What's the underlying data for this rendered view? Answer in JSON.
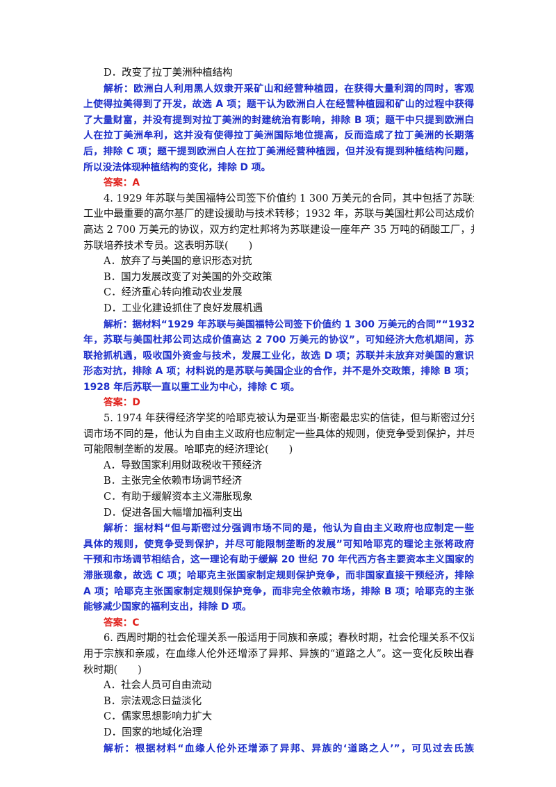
{
  "q3": {
    "option_d": "D．改变了拉丁美洲种植结构",
    "explanation": [
      "解析：欧洲白人利用黑人奴隶开采矿山和经营种植园，在获得大量利润的同时，客观",
      "上使得拉美得到了开发，故选 A 项；题干认为欧洲白人在经营种植园和矿山的过程中获得",
      "了大量财富，并没有提到对拉丁美洲的封建统治有影响，排除 B 项；题干中只提到欧洲白",
      "人在拉丁美洲牟利，这并没有使得拉丁美洲国际地位提高，反而造成了拉丁美洲的长期落",
      "后，排除 C 项；题干提到欧洲白人在拉丁美洲经营种植园，但并没有提到种植结构问题，",
      "所以没法体现种植结构的变化，排除 D 项。"
    ],
    "answer": "答案：A"
  },
  "q4": {
    "stem": [
      "4. 1929 年苏联与美国福特公司签下价值约 1 300 万美元的合同，其中包括了苏联汽车",
      "工业中最重要的高尔基厂的建设援助与技术转移；1932 年，苏联与美国杜邦公司达成价值",
      "高达 2 700 万美元的协议，双方约定杜邦将为苏联建设一座年产 35 万吨的硝酸工厂，并为",
      "苏联培养技术专员。这表明苏联(　　)"
    ],
    "options": [
      "A．放弃了与美国的意识形态对抗",
      "B．国力发展改变了对美国的外交政策",
      "C．经济重心转向推动农业发展",
      "D．工业化建设抓住了良好发展机遇"
    ],
    "explanation": [
      "解析：据材料“1929 年苏联与美国福特公司签下价值约 1 300 万美元的合同”“1932",
      "年，苏联与美国杜邦公司达成价值高达 2 700 万美元的协议”，可知经济大危机期间，苏",
      "联抢抓机遇，吸收国外资金与技术，发展工业化，故选 D 项；苏联并未放弃对美国的意识",
      "形态对抗，排除 A 项；材料说的是苏联与美国企业的合作，并不是外交政策，排除 B 项；",
      "1928 年后苏联一直以重工业为中心，排除 C 项。"
    ],
    "answer": "答案：D"
  },
  "q5": {
    "stem": [
      "5. 1974  年获得经济学奖的哈耶克被认为是亚当·斯密最忠实的信徒，但与斯密过分强",
      "调市场不同的是，他认为自由主义政府也应制定一些具体的规则，使竞争受到保护，并尽",
      "可能限制垄断的发展。哈耶克的经济理论(　　)"
    ],
    "options": [
      "A．导致国家利用财政税收干预经济",
      "B．主张完全依赖市场调节经济",
      "C．有助于缓解资本主义滞胀现象",
      "D．促进各国大幅增加福利支出"
    ],
    "explanation": [
      "解析：据材料“但与斯密过分强调市场不同的是，他认为自由主义政府也应制定一些",
      "具体的规则，使竞争受到保护，并尽可能限制垄断的发展”可知哈耶克的理论主张将政府",
      "干预和市场调节相结合，这一理论有助于缓解 20 世纪 70 年代西方各主要资本主义国家的",
      "滞胀现象，故选 C 项；哈耶克主张国家制定规则保护竞争，而非国家直接干预经济，排除",
      "A 项；哈耶克主张国家制定规则保护竞争，而非完全依赖市场，排除 B 项；哈耶克的主张",
      "能够减少国家的福利支出，排除 D 项。"
    ],
    "answer": "答案：C"
  },
  "q6": {
    "stem": [
      "6. 西周时期的社会伦理关系一般适用于同族和亲戚；春秋时期，社会伦理关系不仅适",
      "用于宗族和亲戚，在血缘人伦外还增添了异邦、异族的“道路之人”。这一变化反映出春",
      "秋时期(　　)"
    ],
    "options": [
      "A．社会人员可自由流动",
      "B．宗法观念日益淡化",
      "C．儒家思想影响力扩大",
      "D．国家的地域化治理"
    ],
    "explanation": [
      "解析：根据材料“血缘人伦外还增添了异邦、异族的‘道路之人’”，可见过去氏族"
    ]
  },
  "colors": {
    "explanation": "#1d2ec9",
    "answer": "#e0201b",
    "text": "#111111"
  }
}
